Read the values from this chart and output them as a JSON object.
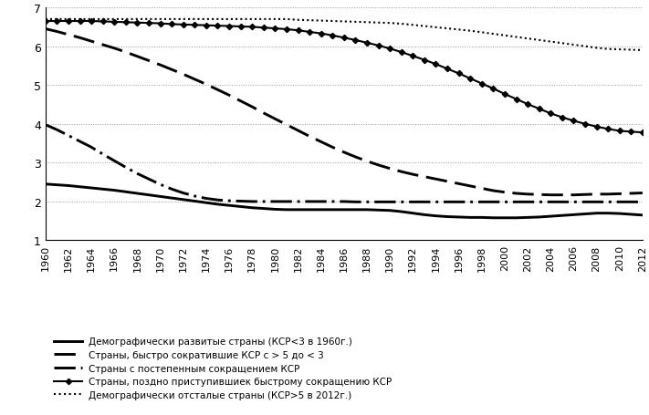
{
  "years": [
    1960,
    1961,
    1962,
    1963,
    1964,
    1965,
    1966,
    1967,
    1968,
    1969,
    1970,
    1971,
    1972,
    1973,
    1974,
    1975,
    1976,
    1977,
    1978,
    1979,
    1980,
    1981,
    1982,
    1983,
    1984,
    1985,
    1986,
    1987,
    1988,
    1989,
    1990,
    1991,
    1992,
    1993,
    1994,
    1995,
    1996,
    1997,
    1998,
    1999,
    2000,
    2001,
    2002,
    2003,
    2004,
    2005,
    2006,
    2007,
    2008,
    2009,
    2010,
    2011,
    2012
  ],
  "series": {
    "developed": [
      2.45,
      2.43,
      2.41,
      2.38,
      2.35,
      2.32,
      2.29,
      2.25,
      2.21,
      2.17,
      2.13,
      2.09,
      2.05,
      2.01,
      1.97,
      1.93,
      1.9,
      1.87,
      1.84,
      1.82,
      1.8,
      1.79,
      1.79,
      1.79,
      1.79,
      1.79,
      1.79,
      1.79,
      1.79,
      1.78,
      1.77,
      1.74,
      1.7,
      1.66,
      1.63,
      1.61,
      1.6,
      1.59,
      1.59,
      1.58,
      1.58,
      1.58,
      1.59,
      1.6,
      1.62,
      1.64,
      1.66,
      1.68,
      1.7,
      1.7,
      1.69,
      1.67,
      1.65
    ],
    "fast_decline": [
      6.45,
      6.38,
      6.3,
      6.22,
      6.13,
      6.04,
      5.95,
      5.85,
      5.74,
      5.63,
      5.52,
      5.4,
      5.28,
      5.15,
      5.02,
      4.88,
      4.74,
      4.59,
      4.44,
      4.28,
      4.13,
      3.98,
      3.83,
      3.68,
      3.54,
      3.4,
      3.27,
      3.15,
      3.04,
      2.94,
      2.85,
      2.77,
      2.7,
      2.64,
      2.58,
      2.52,
      2.46,
      2.4,
      2.34,
      2.28,
      2.24,
      2.21,
      2.19,
      2.18,
      2.17,
      2.17,
      2.17,
      2.18,
      2.19,
      2.19,
      2.2,
      2.21,
      2.22
    ],
    "gradual_decline": [
      3.98,
      3.85,
      3.7,
      3.55,
      3.4,
      3.22,
      3.05,
      2.88,
      2.72,
      2.58,
      2.44,
      2.32,
      2.22,
      2.14,
      2.08,
      2.04,
      2.02,
      2.01,
      2.0,
      2.0,
      2.0,
      2.0,
      2.0,
      2.0,
      2.0,
      2.0,
      2.0,
      1.99,
      1.99,
      1.99,
      1.99,
      1.99,
      1.99,
      1.99,
      1.99,
      1.99,
      1.99,
      1.99,
      1.99,
      1.99,
      1.99,
      1.99,
      1.99,
      1.99,
      1.99,
      1.99,
      1.99,
      1.99,
      1.99,
      1.99,
      1.99,
      1.99,
      1.99
    ],
    "late_decline": [
      6.65,
      6.65,
      6.65,
      6.65,
      6.65,
      6.64,
      6.63,
      6.62,
      6.61,
      6.6,
      6.59,
      6.57,
      6.56,
      6.55,
      6.54,
      6.53,
      6.52,
      6.51,
      6.5,
      6.48,
      6.46,
      6.44,
      6.41,
      6.37,
      6.33,
      6.28,
      6.22,
      6.16,
      6.09,
      6.02,
      5.94,
      5.85,
      5.75,
      5.65,
      5.54,
      5.42,
      5.3,
      5.17,
      5.04,
      4.91,
      4.77,
      4.64,
      4.51,
      4.39,
      4.27,
      4.17,
      4.08,
      4.0,
      3.93,
      3.87,
      3.82,
      3.8,
      3.78
    ],
    "backward": [
      6.7,
      6.7,
      6.7,
      6.7,
      6.7,
      6.7,
      6.7,
      6.7,
      6.7,
      6.7,
      6.7,
      6.7,
      6.7,
      6.7,
      6.7,
      6.7,
      6.7,
      6.7,
      6.7,
      6.7,
      6.7,
      6.7,
      6.68,
      6.67,
      6.66,
      6.65,
      6.64,
      6.63,
      6.62,
      6.61,
      6.6,
      6.58,
      6.55,
      6.52,
      6.49,
      6.46,
      6.43,
      6.4,
      6.36,
      6.32,
      6.28,
      6.24,
      6.2,
      6.16,
      6.12,
      6.08,
      6.04,
      6.0,
      5.96,
      5.93,
      5.92,
      5.91,
      5.9
    ]
  },
  "ylim": [
    1,
    7
  ],
  "yticks": [
    1,
    2,
    3,
    4,
    5,
    6,
    7
  ],
  "legend_labels": [
    "Демографически развитые страны (КСР<3 в 1960г.)",
    "Страны, быстро сократившие КСР с > 5 до < 3",
    "Страны с постепенным сокращением КСР",
    "Страны, поздно приступившиек быстрому сокращению КСР",
    "Демографически отсталые страны (КСР>5 в 2012г.)"
  ],
  "background_color": "#ffffff",
  "grid_color": "#999999",
  "line_color": "#000000"
}
